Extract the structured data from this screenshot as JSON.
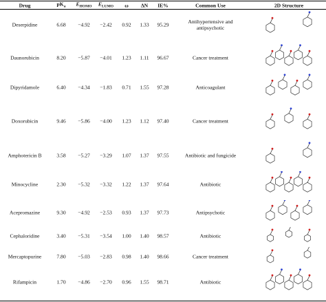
{
  "table": {
    "header": [
      {
        "main": "Drug"
      },
      {
        "main": "pK",
        "sub": "a"
      },
      {
        "main": "E",
        "sub": "HOMO"
      },
      {
        "main": "E",
        "sub": "LUMO"
      },
      {
        "main": "ω"
      },
      {
        "main": "ΔN"
      },
      {
        "main": "IE%"
      },
      {
        "main": "Common Use"
      },
      {
        "main": "2D Structure"
      }
    ],
    "rows": [
      [
        "Deserpidine",
        "6.68",
        "−4.92",
        "−2.42",
        "0.92",
        "1.33",
        "95.29",
        "Antihypertensive and antipsychotic"
      ],
      [
        "Daunorubicin",
        "8.20",
        "−5.87",
        "−4.01",
        "1.23",
        "1.11",
        "96.67",
        "Cancer treatment"
      ],
      [
        "Dipyridamole",
        "6.40",
        "−4.34",
        "−1.83",
        "0.71",
        "1.55",
        "97.28",
        "Anticoagulant"
      ],
      [
        "Doxorubicin",
        "9.46",
        "−5.86",
        "−4.00",
        "1.23",
        "1.12",
        "97.40",
        "Cancer treatment"
      ],
      [
        "Amphotericin B",
        "3.58",
        "−5.27",
        "−3.29",
        "1.07",
        "1.37",
        "97.55",
        "Antibiotic and fungicide"
      ],
      [
        "Minocycline",
        "2.30",
        "−5.32",
        "−3.32",
        "1.22",
        "1.37",
        "97.64",
        "Antibiotic"
      ],
      [
        "Acepromazine",
        "9.30",
        "−4.92",
        "−2.53",
        "0.93",
        "1.37",
        "97.73",
        "Antipsychotic"
      ],
      [
        "Cephaloridine",
        "3.40",
        "−5.31",
        "−3.54",
        "1.00",
        "1.40",
        "98.57",
        "Antibiotic"
      ],
      [
        "Mercaptopurine",
        "7.80",
        "−5.03",
        "−2.83",
        "0.98",
        "1.40",
        "98.66",
        "Cancer treatment"
      ],
      [
        "Rifampicin",
        "1.70",
        "−4.86",
        "−2.70",
        "0.96",
        "1.55",
        "98.71",
        "Antibiotic"
      ]
    ]
  }
}
